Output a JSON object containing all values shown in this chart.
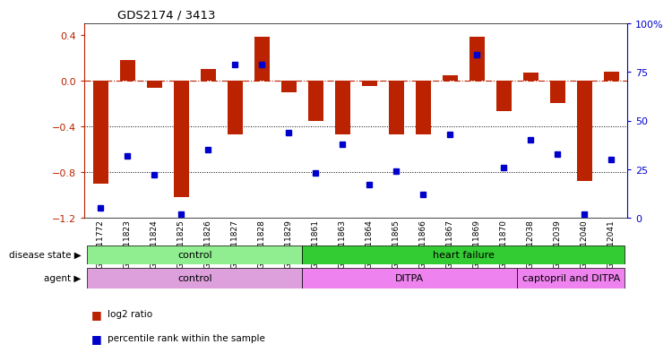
{
  "title": "GDS2174 / 3413",
  "samples": [
    "GSM111772",
    "GSM111823",
    "GSM111824",
    "GSM111825",
    "GSM111826",
    "GSM111827",
    "GSM111828",
    "GSM111829",
    "GSM111861",
    "GSM111863",
    "GSM111864",
    "GSM111865",
    "GSM111866",
    "GSM111867",
    "GSM111869",
    "GSM111870",
    "GSM112038",
    "GSM112039",
    "GSM112040",
    "GSM112041"
  ],
  "log2_ratio": [
    -0.9,
    0.18,
    -0.06,
    -1.02,
    0.1,
    -0.47,
    0.38,
    -0.1,
    -0.35,
    -0.47,
    -0.05,
    -0.47,
    -0.47,
    0.05,
    0.38,
    -0.27,
    0.07,
    -0.2,
    -0.88,
    0.08
  ],
  "percentile_rank": [
    5,
    32,
    22,
    2,
    35,
    79,
    79,
    44,
    23,
    38,
    17,
    24,
    12,
    43,
    84,
    26,
    40,
    33,
    2,
    30
  ],
  "disease_state_segments": [
    {
      "label": "control",
      "start": 0,
      "end": 8,
      "color": "#90EE90"
    },
    {
      "label": "heart failure",
      "start": 8,
      "end": 20,
      "color": "#33CC33"
    }
  ],
  "agent_segments": [
    {
      "label": "control",
      "start": 0,
      "end": 8,
      "color": "#DDA0DD"
    },
    {
      "label": "DITPA",
      "start": 8,
      "end": 16,
      "color": "#EE82EE"
    },
    {
      "label": "captopril and DITPA",
      "start": 16,
      "end": 20,
      "color": "#EE82EE"
    }
  ],
  "bar_color": "#BB2200",
  "dot_color": "#0000CC",
  "ylim_left": [
    -1.2,
    0.5
  ],
  "ylim_right": [
    0,
    100
  ],
  "yticks_left": [
    -1.2,
    -0.8,
    -0.4,
    0.0,
    0.4
  ],
  "yticks_right": [
    0,
    25,
    50,
    75,
    100
  ],
  "ytick_right_labels": [
    "0",
    "25",
    "50",
    "75",
    "100%"
  ],
  "hline_y": 0.0,
  "dotted_lines": [
    -0.4,
    -0.8
  ],
  "legend_items": [
    {
      "label": "log2 ratio",
      "color": "#BB2200"
    },
    {
      "label": "percentile rank within the sample",
      "color": "#0000CC"
    }
  ],
  "disease_state_label": "disease state",
  "agent_label": "agent",
  "bar_width": 0.55,
  "xlim": [
    -0.6,
    19.6
  ]
}
